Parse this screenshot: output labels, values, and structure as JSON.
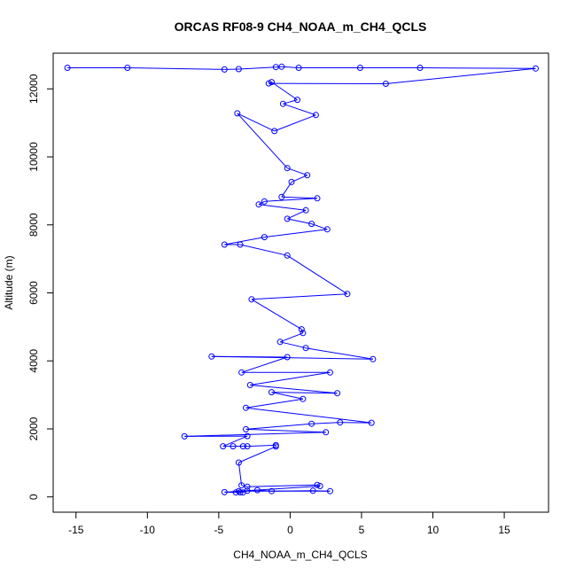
{
  "chart_data": {
    "type": "scatter",
    "title": "ORCAS RF08-9 CH4_NOAA_m_CH4_QCLS",
    "xlabel": "CH4_NOAA_m_CH4_QCLS",
    "ylabel": "Altitude (m)",
    "xlim": [
      -16.6,
      18.1
    ],
    "ylim": [
      -450,
      13050
    ],
    "x_ticks": [
      -15,
      -10,
      -5,
      0,
      5,
      10,
      15
    ],
    "y_ticks": [
      0,
      2000,
      4000,
      6000,
      8000,
      10000,
      12000
    ],
    "grid": false,
    "legend": "none",
    "series_color": "#0000ff",
    "series": [
      {
        "name": "",
        "points": [
          [
            -15.6,
            12620
          ],
          [
            -11.4,
            12620
          ],
          [
            -4.6,
            12570
          ],
          [
            -3.6,
            12580
          ],
          [
            -1.0,
            12640
          ],
          [
            -0.6,
            12650
          ],
          [
            0.6,
            12620
          ],
          [
            4.9,
            12620
          ],
          [
            9.1,
            12620
          ],
          [
            17.2,
            12600
          ],
          [
            6.7,
            12150
          ],
          [
            -1.5,
            12160
          ],
          [
            -1.3,
            12200
          ],
          [
            0.5,
            11680
          ],
          [
            -0.5,
            11560
          ],
          [
            1.8,
            11230
          ],
          [
            -1.1,
            10760
          ],
          [
            -3.7,
            11280
          ],
          [
            -0.2,
            9670
          ],
          [
            1.2,
            9460
          ],
          [
            0.1,
            9260
          ],
          [
            -0.6,
            8820
          ],
          [
            1.9,
            8780
          ],
          [
            -1.8,
            8690
          ],
          [
            -2.2,
            8600
          ],
          [
            1.1,
            8430
          ],
          [
            -0.2,
            8180
          ],
          [
            1.5,
            8030
          ],
          [
            2.6,
            7870
          ],
          [
            -1.8,
            7640
          ],
          [
            -4.6,
            7420
          ],
          [
            -3.5,
            7420
          ],
          [
            -0.2,
            7100
          ],
          [
            4.0,
            5970
          ],
          [
            -2.7,
            5810
          ],
          [
            0.8,
            4930
          ],
          [
            0.9,
            4820
          ],
          [
            -0.7,
            4560
          ],
          [
            1.1,
            4380
          ],
          [
            5.8,
            4050
          ],
          [
            -5.5,
            4130
          ],
          [
            -0.2,
            4110
          ],
          [
            -3.4,
            3660
          ],
          [
            2.8,
            3660
          ],
          [
            -2.8,
            3290
          ],
          [
            3.3,
            3050
          ],
          [
            -1.3,
            3080
          ],
          [
            0.9,
            2880
          ],
          [
            -3.1,
            2620
          ],
          [
            5.7,
            2180
          ],
          [
            3.5,
            2190
          ],
          [
            1.5,
            2150
          ],
          [
            -3.1,
            1990
          ],
          [
            2.5,
            1900
          ],
          [
            -7.4,
            1780
          ],
          [
            -3.0,
            1790
          ],
          [
            -4.7,
            1490
          ],
          [
            -4.0,
            1490
          ],
          [
            -3.3,
            1490
          ],
          [
            -3.0,
            1490
          ],
          [
            -1.0,
            1520
          ],
          [
            -1.0,
            1480
          ],
          [
            -3.6,
            1010
          ],
          [
            -3.4,
            340
          ],
          [
            -3.0,
            300
          ],
          [
            1.9,
            350
          ],
          [
            2.1,
            320
          ],
          [
            -4.6,
            140
          ],
          [
            -3.8,
            130
          ],
          [
            -3.5,
            130
          ],
          [
            -3.3,
            130
          ],
          [
            -3.0,
            180
          ],
          [
            -2.3,
            200
          ],
          [
            -1.3,
            170
          ],
          [
            1.6,
            180
          ],
          [
            2.8,
            170
          ],
          [
            -3.6,
            170
          ]
        ]
      }
    ]
  }
}
